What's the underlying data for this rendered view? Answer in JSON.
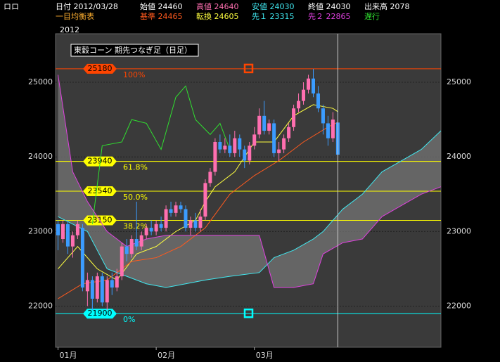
{
  "header": {
    "menu": "ロロ",
    "date": "日付 2012/03/28",
    "open": "始値 24460",
    "high": "高値 24640",
    "low": "安値 24030",
    "close": "終値 24030",
    "volume": "出来高 2078",
    "indicator": "一目均衡表",
    "kijun": "基準 24465",
    "tenkan": "転換 24605",
    "senkou1": "先１ 23315",
    "senkou2": "先２ 22865",
    "chikou": "遅行",
    "year": "2012"
  },
  "chart_data": {
    "type": "candlestick",
    "title": "東穀コーン 期先つなぎ足（日足）",
    "xlim": [
      -0.5,
      78
    ],
    "ylim": [
      21450,
      25650
    ],
    "yticks": [
      22000,
      23000,
      24000,
      25000
    ],
    "grid": true,
    "xticks": [
      {
        "value": 0,
        "label": "01月"
      },
      {
        "value": 20,
        "label": "02月"
      },
      {
        "value": 40,
        "label": "03月"
      }
    ],
    "up_color": "#ff6fb0",
    "down_color": "#3b9cff",
    "open": [
      23100,
      22900,
      23100,
      22800,
      22950,
      23050,
      22200,
      22350,
      22100,
      22400,
      22050,
      22350,
      22250,
      22400,
      22800,
      22700,
      22900,
      22800,
      22950,
      23050,
      23000,
      23100,
      23050,
      23300,
      23250,
      23350,
      23300,
      23050,
      23150,
      23050,
      23200,
      23650,
      23800,
      24200,
      24100,
      24150,
      24050,
      24250,
      24100,
      23950,
      24150,
      24300,
      24550,
      24350,
      24450,
      24050,
      24100,
      24250,
      24400,
      24650,
      24750,
      24900,
      25050,
      24850,
      24650,
      24450,
      24250,
      24460
    ],
    "high": [
      23150,
      23150,
      23150,
      23000,
      23150,
      23100,
      22450,
      22400,
      22450,
      22450,
      22400,
      22450,
      22500,
      22850,
      22900,
      22950,
      23400,
      23000,
      23100,
      23150,
      23150,
      23200,
      23350,
      23400,
      23400,
      23400,
      23350,
      23200,
      23250,
      23300,
      23700,
      23850,
      24250,
      24300,
      24250,
      24300,
      24350,
      24300,
      24150,
      24200,
      24400,
      24650,
      24750,
      24500,
      24500,
      24200,
      24300,
      24450,
      24700,
      24850,
      25000,
      25100,
      25180,
      24950,
      24700,
      24550,
      24600,
      24640
    ],
    "low": [
      22750,
      22850,
      22700,
      22650,
      22900,
      22200,
      22000,
      21950,
      22050,
      22000,
      21950,
      22150,
      22200,
      22350,
      22600,
      22650,
      22750,
      22750,
      22900,
      22950,
      22950,
      23000,
      23000,
      23200,
      23200,
      23250,
      23000,
      22950,
      23000,
      23000,
      23150,
      23600,
      23750,
      24050,
      24050,
      24000,
      24000,
      24000,
      23850,
      23900,
      24100,
      24250,
      24300,
      24300,
      24000,
      23950,
      24050,
      24200,
      24350,
      24600,
      24700,
      24850,
      24800,
      24600,
      24300,
      24150,
      24200,
      24030
    ],
    "close": [
      22950,
      23100,
      22800,
      22950,
      23100,
      22250,
      22350,
      22100,
      22400,
      22050,
      22350,
      22250,
      22400,
      22800,
      22700,
      22900,
      22800,
      22950,
      23050,
      23000,
      23100,
      23050,
      23300,
      23250,
      23350,
      23300,
      23050,
      23150,
      23050,
      23200,
      23650,
      23800,
      24200,
      24100,
      24150,
      24050,
      24250,
      24100,
      23950,
      24150,
      24300,
      24550,
      24350,
      24450,
      24050,
      24100,
      24250,
      24400,
      24650,
      24750,
      24900,
      25050,
      24850,
      24650,
      24450,
      24250,
      24500,
      24030
    ],
    "series": [
      {
        "color": "#ffff40",
        "x": [
          0,
          4,
          8,
          12,
          16,
          20,
          24,
          28,
          30,
          32,
          36,
          40,
          44,
          48,
          52,
          56,
          57
        ],
        "values": [
          22500,
          22800,
          22500,
          22350,
          22700,
          22800,
          23000,
          23150,
          23400,
          23600,
          23800,
          24200,
          24200,
          24550,
          24700,
          24650,
          24605
        ]
      },
      {
        "color": "#ff5a1e",
        "x": [
          0,
          5,
          10,
          15,
          20,
          25,
          30,
          35,
          40,
          45,
          50,
          55,
          57
        ],
        "values": [
          22100,
          22300,
          22350,
          22600,
          22650,
          22800,
          23050,
          23500,
          23750,
          23950,
          24200,
          24400,
          24465
        ]
      },
      {
        "color": "#30e030",
        "x": [
          7,
          9,
          13,
          15,
          18,
          21,
          24,
          26,
          28,
          31,
          33,
          35
        ],
        "values": [
          23100,
          24150,
          24200,
          24500,
          24450,
          24100,
          24800,
          24950,
          24500,
          24300,
          24450,
          24100
        ]
      },
      {
        "color": "#40e8f0",
        "x": [
          0,
          3,
          6,
          10,
          14,
          18,
          22,
          26,
          30,
          35,
          41,
          44,
          48,
          52,
          54,
          58,
          62,
          66,
          70,
          74,
          78
        ],
        "values": [
          23200,
          23100,
          23000,
          22500,
          22400,
          22300,
          22250,
          22300,
          22350,
          22400,
          22450,
          22650,
          22750,
          22900,
          23000,
          23300,
          23500,
          23800,
          23950,
          24100,
          24350
        ]
      },
      {
        "color": "#e040e0",
        "x": [
          0,
          3,
          6,
          10,
          14,
          18,
          22,
          26,
          30,
          35,
          41,
          44,
          48,
          52,
          54,
          58,
          62,
          66,
          70,
          74,
          78
        ],
        "values": [
          25100,
          23800,
          23400,
          23000,
          22800,
          22900,
          22950,
          22950,
          22950,
          22950,
          22950,
          22250,
          22250,
          22300,
          22700,
          22850,
          22900,
          23200,
          23350,
          23500,
          23600
        ]
      }
    ],
    "levels": [
      {
        "value": 25180,
        "label": "100%",
        "color": "#ff4500"
      },
      {
        "value": 23940,
        "label": "61.8%",
        "color": "#ffff00"
      },
      {
        "value": 23540,
        "label": "50.0%",
        "color": "#ffff00"
      },
      {
        "value": 23150,
        "label": "38.2%",
        "color": "#ffff00"
      },
      {
        "value": 21900,
        "label": "0%",
        "color": "#00ffff"
      }
    ]
  }
}
